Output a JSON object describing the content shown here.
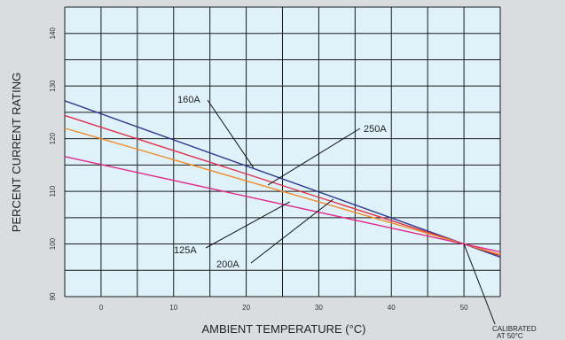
{
  "chart_data": {
    "type": "line",
    "xlabel": "AMBIENT TEMPERATURE (°C)",
    "ylabel": "PERCENT CURRENT RATING",
    "xlim": [
      -5,
      55
    ],
    "ylim": [
      90,
      145
    ],
    "x_ticks": [
      "0",
      "10",
      "20",
      "30",
      "40",
      "50"
    ],
    "y_ticks": [
      "90",
      "100",
      "110",
      "120",
      "130",
      "140"
    ],
    "grid": true,
    "colors": {
      "plot_bg": "#dff2fa",
      "page_bg": "#d9dde0",
      "grid": "#1a1a1a"
    },
    "series": [
      {
        "name": "160A",
        "color": "#2e3a8c",
        "x": [
          -5,
          50,
          55
        ],
        "y": [
          127.2,
          100,
          97.5
        ]
      },
      {
        "name": "250A",
        "color": "#e0304a",
        "x": [
          -5,
          50,
          55
        ],
        "y": [
          124.4,
          100,
          97.8
        ]
      },
      {
        "name": "200A",
        "color": "#f08a2a",
        "x": [
          -5,
          50,
          55
        ],
        "y": [
          122.0,
          100,
          98.0
        ]
      },
      {
        "name": "125A",
        "color": "#e0288a",
        "x": [
          -5,
          50,
          55
        ],
        "y": [
          116.6,
          100,
          98.5
        ]
      }
    ],
    "annotations": [
      {
        "label": "160A",
        "target_x": 21,
        "target_y": 114.5
      },
      {
        "label": "250A",
        "target_x": 23,
        "target_y": 111.2
      },
      {
        "label": "125A",
        "target_x": 26,
        "target_y": 108.0
      },
      {
        "label": "200A",
        "target_x": 32,
        "target_y": 108.5
      }
    ],
    "calibration_note": {
      "line1": "CALIBRATED",
      "line2": "AT 50°C",
      "target_x": 50,
      "target_y": 100
    }
  }
}
